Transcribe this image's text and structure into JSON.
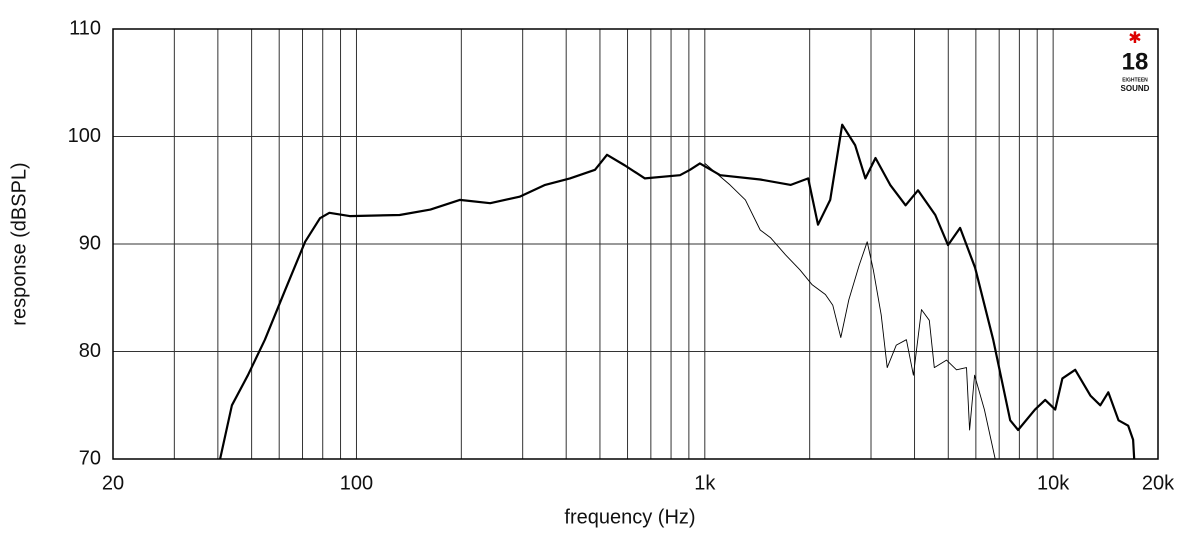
{
  "chart_data": {
    "type": "line",
    "xlabel": "frequency (Hz)",
    "ylabel": "response (dBSPL)",
    "xscale": "log",
    "grid": true,
    "xlim": [
      20,
      20000
    ],
    "ylim": [
      70,
      110
    ],
    "xticks": [
      20,
      100,
      {
        "value": 1000,
        "label": "1k"
      },
      {
        "value": 10000,
        "label": "10k"
      },
      {
        "value": 20000,
        "label": "20k"
      }
    ],
    "xgrid": [
      30,
      40,
      50,
      60,
      70,
      80,
      90,
      200,
      300,
      400,
      500,
      600,
      700,
      800,
      900,
      2000,
      3000,
      4000,
      5000,
      6000,
      7000,
      8000,
      9000
    ],
    "yticks": [
      70,
      80,
      90,
      100,
      110
    ],
    "logo": [
      "18",
      "EIGHTEEN",
      "SOUND"
    ],
    "series": [
      {
        "color": "#000000",
        "width": 2.2,
        "x": [
          40.6,
          43.9,
          48.8,
          54.6,
          62.4,
          71.2,
          78.6,
          83.6,
          95.6,
          133,
          163,
          198,
          242,
          294,
          348,
          410,
          484,
          524,
          590,
          673,
          849,
          907,
          968,
          1107,
          1442,
          1766,
          1981,
          2113,
          2290,
          2480,
          2700,
          2890,
          3090,
          3405,
          3770,
          4094,
          4590,
          4990,
          5405,
          5970,
          6730,
          7530,
          7930,
          8870,
          9490,
          10140,
          10630,
          11570,
          12790,
          13660,
          14400,
          15400,
          16420,
          16970,
          17090
        ],
        "values": [
          70,
          75,
          77.8,
          81.1,
          85.7,
          90.2,
          92.4,
          92.9,
          92.6,
          92.7,
          93.2,
          94.1,
          93.8,
          94.4,
          95.5,
          96.1,
          96.9,
          98.3,
          97.3,
          96.1,
          96.4,
          96.9,
          97.5,
          96.4,
          96,
          95.5,
          96.1,
          91.8,
          94.1,
          101.1,
          99.2,
          96.1,
          98,
          95.5,
          93.6,
          95,
          92.7,
          89.9,
          91.5,
          87.8,
          81.1,
          73.6,
          72.7,
          74.6,
          75.5,
          74.6,
          77.5,
          78.3,
          75.9,
          75,
          76.2,
          73.6,
          73.1,
          71.8,
          70
        ]
      },
      {
        "color": "#000000",
        "width": 0.9,
        "x": [
          1000,
          1181,
          1308,
          1442,
          1543,
          1705,
          1875,
          2034,
          2219,
          2330,
          2457,
          2590,
          2773,
          2926,
          3045,
          3210,
          3340,
          3545,
          3790,
          3970,
          4190,
          4410,
          4560,
          4940,
          5280,
          5640,
          5755,
          5950,
          6350,
          6820
        ],
        "values": [
          97.5,
          95.5,
          94.1,
          91.3,
          90.6,
          89,
          87.6,
          86.2,
          85.3,
          84.3,
          81.3,
          84.8,
          88,
          90.2,
          87.6,
          83.4,
          78.5,
          80.6,
          81.1,
          77.8,
          83.9,
          82.9,
          78.5,
          79.2,
          78.3,
          78.5,
          72.7,
          77.8,
          74.6,
          70
        ]
      }
    ]
  }
}
